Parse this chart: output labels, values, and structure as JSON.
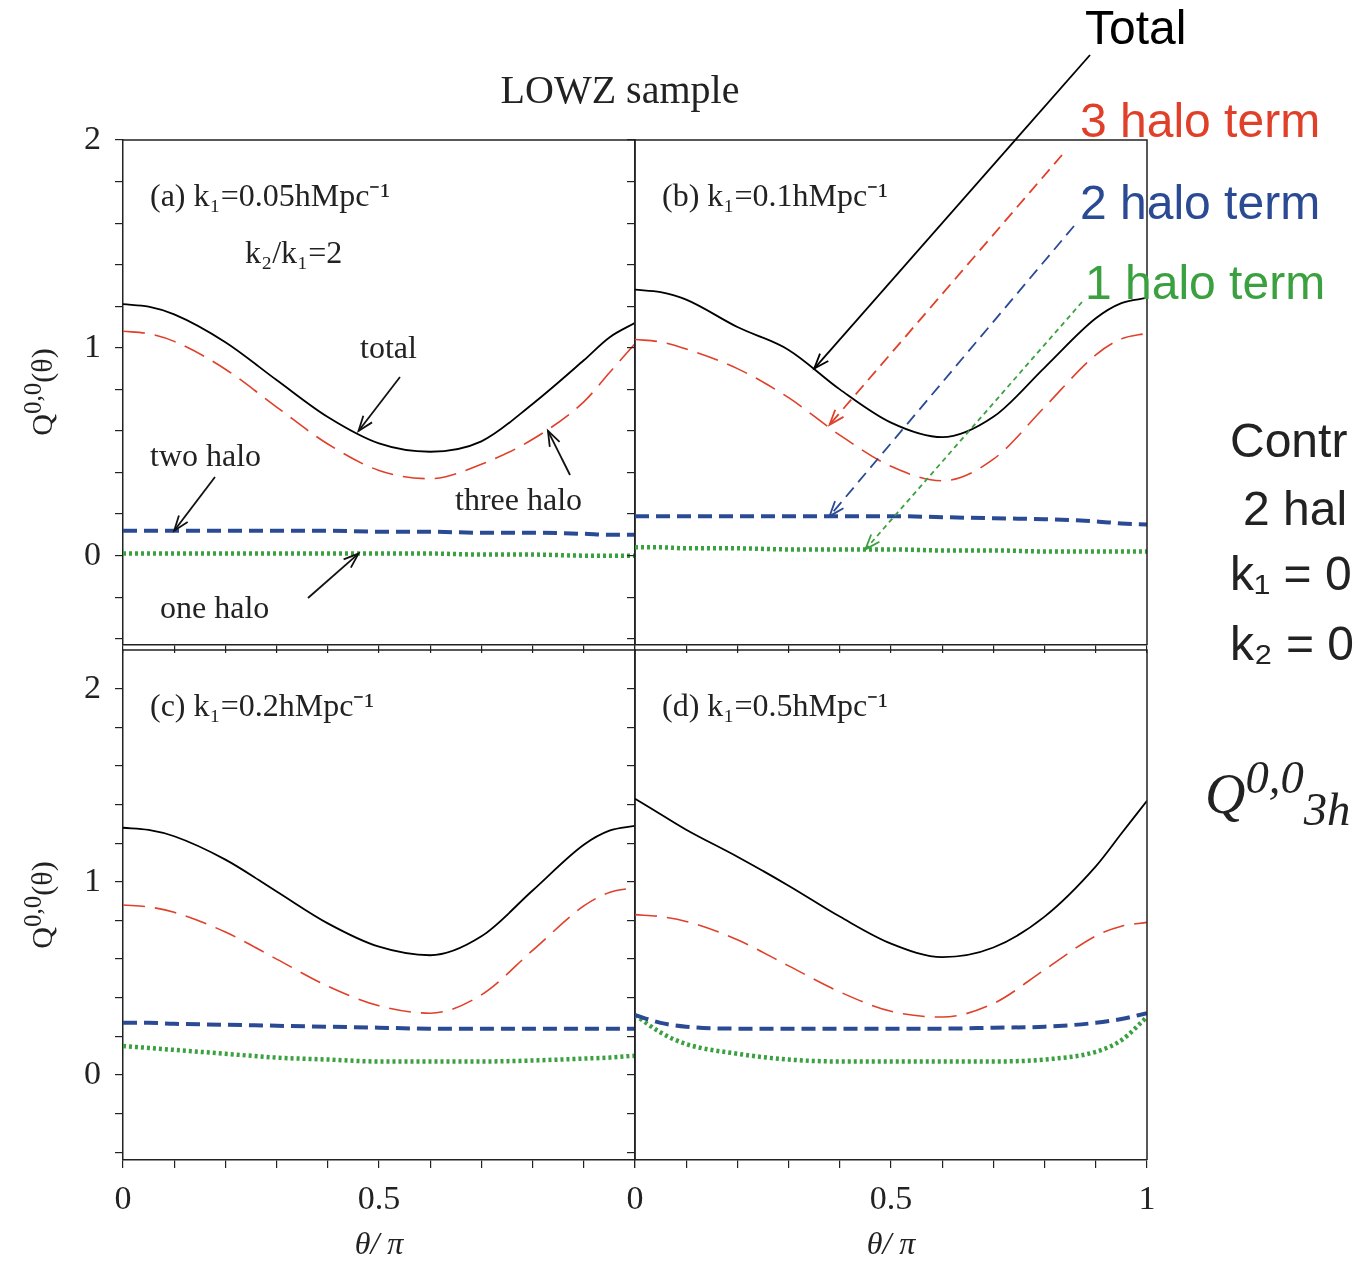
{
  "chart_data": [
    {
      "type": "line",
      "title": "LOWZ sample",
      "ylabel": "Q$^{0,0}$(θ)",
      "tick_labels": "y",
      "x": [
        0,
        0.05,
        0.1,
        0.2,
        0.3,
        0.4,
        0.5,
        0.6,
        0.7,
        0.8,
        0.9,
        0.95,
        1
      ],
      "xlim": [
        0,
        1
      ],
      "xticks": [
        0,
        {
          "value": 0.1,
          "label": null
        },
        {
          "value": 0.2,
          "label": null
        },
        {
          "value": 0.3,
          "label": null
        },
        {
          "value": 0.4,
          "label": null
        },
        0.5,
        {
          "value": 0.6,
          "label": null
        },
        {
          "value": 0.7,
          "label": null
        },
        {
          "value": 0.8,
          "label": null
        },
        {
          "value": 0.9,
          "label": null
        },
        {
          "value": 1,
          "label": null
        }
      ],
      "ylim": [
        -0.43,
        2
      ],
      "yticks": [
        {
          "value": -0.4,
          "label": null
        },
        {
          "value": -0.2,
          "label": null
        },
        0,
        {
          "value": 0.2,
          "label": null
        },
        {
          "value": 0.4,
          "label": null
        },
        {
          "value": 0.6,
          "label": null
        },
        {
          "value": 0.8,
          "label": null
        },
        1,
        {
          "value": 1.2,
          "label": null
        },
        {
          "value": 1.4,
          "label": null
        },
        {
          "value": 1.6,
          "label": null
        },
        {
          "value": 1.8,
          "label": null
        },
        2
      ],
      "series": [
        {
          "color": "#000000",
          "line_style": "solid",
          "values": [
            1.21,
            1.198,
            1.161,
            1.027,
            0.845,
            0.667,
            0.54,
            0.5,
            0.55,
            0.73,
            0.94,
            1.05,
            1.12
          ]
        },
        {
          "color": "#e0402a",
          "line_style": "dashed",
          "values": [
            1.08,
            1.068,
            1.031,
            0.897,
            0.715,
            0.537,
            0.41,
            0.37,
            0.44,
            0.56,
            0.74,
            0.88,
            1.02
          ]
        },
        {
          "color": "#2b4a94",
          "line_style": "dashed",
          "values": [
            0.12,
            0.12,
            0.12,
            0.12,
            0.12,
            0.12,
            0.115,
            0.115,
            0.11,
            0.11,
            0.105,
            0.1,
            0.1
          ]
        },
        {
          "color": "#3aa040",
          "line_style": "dotted",
          "values": [
            0.01,
            0.01,
            0.01,
            0.01,
            0.01,
            0.01,
            0.01,
            0.01,
            0.005,
            0.005,
            0,
            0,
            0
          ]
        }
      ],
      "annotations": [
        "(a) k₁=0.05hMpc⁻¹",
        "k₂/k₁=2",
        {
          "text": "total",
          "x": 0.46,
          "y": 0.6
        },
        {
          "text": "three halo",
          "x": 0.83,
          "y": 0.6
        },
        {
          "text": "two halo",
          "x": 0.1,
          "y": 0.12
        },
        {
          "text": "one halo",
          "x": 0.46,
          "y": 0.01
        }
      ]
    },
    {
      "type": "line",
      "tick_labels": false,
      "x": [
        0,
        0.05,
        0.1,
        0.2,
        0.3,
        0.4,
        0.5,
        0.6,
        0.7,
        0.8,
        0.9,
        0.95,
        1
      ],
      "xlim": [
        0,
        1
      ],
      "xticks": [
        0,
        {
          "value": 0.1,
          "label": null
        },
        {
          "value": 0.2,
          "label": null
        },
        {
          "value": 0.3,
          "label": null
        },
        {
          "value": 0.4,
          "label": null
        },
        0.5,
        {
          "value": 0.6,
          "label": null
        },
        {
          "value": 0.7,
          "label": null
        },
        {
          "value": 0.8,
          "label": null
        },
        {
          "value": 0.9,
          "label": null
        },
        1
      ],
      "ylim": [
        -0.43,
        2
      ],
      "yticks": [
        {
          "value": -0.4,
          "label": null
        },
        {
          "value": -0.2,
          "label": null
        },
        0,
        {
          "value": 0.2,
          "label": null
        },
        {
          "value": 0.4,
          "label": null
        },
        {
          "value": 0.6,
          "label": null
        },
        {
          "value": 0.8,
          "label": null
        },
        1,
        {
          "value": 1.2,
          "label": null
        },
        {
          "value": 1.4,
          "label": null
        },
        {
          "value": 1.6,
          "label": null
        },
        {
          "value": 1.8,
          "label": null
        },
        2
      ],
      "series": [
        {
          "color": "#000000",
          "line_style": "solid",
          "values": [
            1.28,
            1.268,
            1.232,
            1.1,
            0.99,
            0.8,
            0.64,
            0.57,
            0.668,
            0.905,
            1.142,
            1.215,
            1.24
          ]
        },
        {
          "color": "#e0402a",
          "line_style": "dashed",
          "values": [
            1.04,
            1.028,
            0.994,
            0.9,
            0.76,
            0.58,
            0.43,
            0.36,
            0.464,
            0.715,
            0.966,
            1.043,
            1.07
          ]
        },
        {
          "color": "#2b4a94",
          "line_style": "dashed",
          "values": [
            0.19,
            0.19,
            0.19,
            0.19,
            0.19,
            0.19,
            0.19,
            0.185,
            0.18,
            0.175,
            0.165,
            0.155,
            0.15
          ]
        },
        {
          "color": "#3aa040",
          "line_style": "dotted",
          "values": [
            0.04,
            0.04,
            0.035,
            0.035,
            0.03,
            0.03,
            0.03,
            0.025,
            0.025,
            0.02,
            0.02,
            0.02,
            0.02
          ]
        }
      ],
      "annotations": [
        "(b) k₁=0.1hMpc⁻¹",
        {
          "text": "Total",
          "x": 0.35,
          "y": 0.9
        },
        {
          "text": "3 halo term",
          "x": 0.38,
          "y": 0.63
        },
        {
          "text": "2 halo term",
          "x": 0.38,
          "y": 0.19
        },
        {
          "text": "1 halo term",
          "x": 0.45,
          "y": 0.03
        },
        "Contr",
        "2 hal",
        "k₁ = 0",
        "k₂ = 0",
        "Q$^{0,0}$$_{3h}$"
      ]
    },
    {
      "type": "line",
      "ylabel": "Q$^{0,0}$(θ)",
      "xlabel": "θ/ π",
      "x": [
        0,
        0.05,
        0.1,
        0.2,
        0.3,
        0.4,
        0.5,
        0.6,
        0.7,
        0.8,
        0.9,
        0.95,
        1
      ],
      "xlim": [
        0,
        1
      ],
      "xticks": [
        0,
        {
          "value": 0.1,
          "label": null
        },
        {
          "value": 0.2,
          "label": null
        },
        {
          "value": 0.3,
          "label": null
        },
        {
          "value": 0.4,
          "label": null
        },
        0.5,
        {
          "value": 0.6,
          "label": null
        },
        {
          "value": 0.7,
          "label": null
        },
        {
          "value": 0.8,
          "label": null
        },
        {
          "value": 0.9,
          "label": null
        },
        {
          "value": 1,
          "label": null
        }
      ],
      "ylim": [
        -0.44,
        2.2
      ],
      "yticks": [
        {
          "value": -0.4,
          "label": null
        },
        {
          "value": -0.2,
          "label": null
        },
        0,
        {
          "value": 0.2,
          "label": null
        },
        {
          "value": 0.4,
          "label": null
        },
        {
          "value": 0.6,
          "label": null
        },
        {
          "value": 0.8,
          "label": null
        },
        1,
        {
          "value": 1.2,
          "label": null
        },
        {
          "value": 1.4,
          "label": null
        },
        {
          "value": 1.6,
          "label": null
        },
        {
          "value": 1.8,
          "label": null
        },
        2
      ],
      "series": [
        {
          "color": "#000000",
          "line_style": "solid",
          "values": [
            1.28,
            1.269,
            1.236,
            1.115,
            0.95,
            0.785,
            0.664,
            0.62,
            0.718,
            0.955,
            1.192,
            1.265,
            1.29
          ]
        },
        {
          "color": "#e0402a",
          "line_style": "dashed",
          "values": [
            0.88,
            0.87,
            0.842,
            0.74,
            0.6,
            0.46,
            0.358,
            0.32,
            0.415,
            0.645,
            0.875,
            0.945,
            0.97
          ]
        },
        {
          "color": "#2b4a94",
          "line_style": "dashed",
          "values": [
            0.27,
            0.27,
            0.265,
            0.26,
            0.255,
            0.25,
            0.245,
            0.24,
            0.24,
            0.24,
            0.24,
            0.24,
            0.24
          ]
        },
        {
          "color": "#3aa040",
          "line_style": "dotted",
          "values": [
            0.15,
            0.14,
            0.13,
            0.11,
            0.09,
            0.08,
            0.07,
            0.07,
            0.07,
            0.075,
            0.085,
            0.09,
            0.1
          ]
        }
      ],
      "annotations": [
        "(c) k₁=0.2hMpc⁻¹"
      ]
    },
    {
      "type": "line",
      "xlabel": "θ/ π",
      "tick_labels": "x",
      "x": [
        0,
        0.05,
        0.1,
        0.2,
        0.3,
        0.4,
        0.5,
        0.6,
        0.7,
        0.8,
        0.9,
        0.95,
        1
      ],
      "xlim": [
        0,
        1
      ],
      "xticks": [
        0,
        {
          "value": 0.1,
          "label": null
        },
        {
          "value": 0.2,
          "label": null
        },
        {
          "value": 0.3,
          "label": null
        },
        {
          "value": 0.4,
          "label": null
        },
        0.5,
        {
          "value": 0.6,
          "label": null
        },
        {
          "value": 0.7,
          "label": null
        },
        {
          "value": 0.8,
          "label": null
        },
        {
          "value": 0.9,
          "label": null
        },
        1
      ],
      "ylim": [
        -0.44,
        2.2
      ],
      "yticks": [
        {
          "value": -0.4,
          "label": null
        },
        {
          "value": -0.2,
          "label": null
        },
        0,
        {
          "value": 0.2,
          "label": null
        },
        {
          "value": 0.4,
          "label": null
        },
        {
          "value": 0.6,
          "label": null
        },
        {
          "value": 0.8,
          "label": null
        },
        1,
        {
          "value": 1.2,
          "label": null
        },
        {
          "value": 1.4,
          "label": null
        },
        {
          "value": 1.6,
          "label": null
        },
        {
          "value": 1.8,
          "label": null
        },
        2
      ],
      "series": [
        {
          "color": "#000000",
          "line_style": "solid",
          "values": [
            1.43,
            1.35,
            1.27,
            1.13,
            0.98,
            0.82,
            0.68,
            0.61,
            0.66,
            0.82,
            1.08,
            1.25,
            1.42
          ]
        },
        {
          "color": "#e0402a",
          "line_style": "dashed",
          "values": [
            0.83,
            0.82,
            0.795,
            0.7,
            0.565,
            0.43,
            0.33,
            0.3,
            0.37,
            0.545,
            0.72,
            0.77,
            0.79
          ]
        },
        {
          "color": "#2b4a94",
          "line_style": "dashed",
          "values": [
            0.31,
            0.27,
            0.25,
            0.24,
            0.24,
            0.24,
            0.24,
            0.24,
            0.245,
            0.25,
            0.27,
            0.29,
            0.32
          ]
        },
        {
          "color": "#3aa040",
          "line_style": "dotted",
          "values": [
            0.31,
            0.22,
            0.16,
            0.11,
            0.08,
            0.07,
            0.07,
            0.07,
            0.07,
            0.08,
            0.12,
            0.18,
            0.3
          ]
        }
      ],
      "annotations": [
        "(d) k₁=0.5hMpc⁻¹"
      ]
    }
  ]
}
